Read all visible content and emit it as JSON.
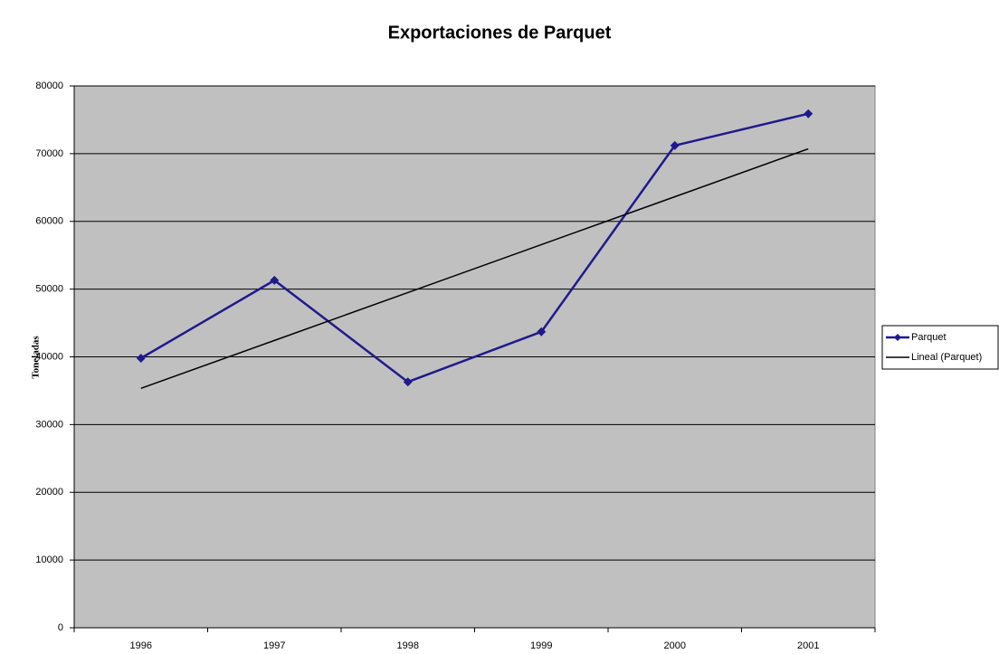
{
  "chart_data": {
    "type": "line",
    "title": "Exportaciones de Parquet",
    "y_label": "Toneladas",
    "categories": [
      "1996",
      "1997",
      "1998",
      "1999",
      "2000",
      "2001"
    ],
    "series": [
      {
        "name": "Parquet",
        "color": "#1f1a8c",
        "marker": "diamond",
        "values": [
          39800,
          51300,
          36300,
          43700,
          71200,
          75900
        ]
      },
      {
        "name": "Lineal (Parquet)",
        "color": "#000000",
        "marker": "none",
        "values": [
          35350,
          42420,
          49490,
          56570,
          63640,
          70710
        ]
      }
    ],
    "ylim": [
      0,
      80000
    ],
    "yticks": [
      0,
      10000,
      20000,
      30000,
      40000,
      50000,
      60000,
      70000,
      80000
    ],
    "grid": true,
    "legend": "right"
  }
}
